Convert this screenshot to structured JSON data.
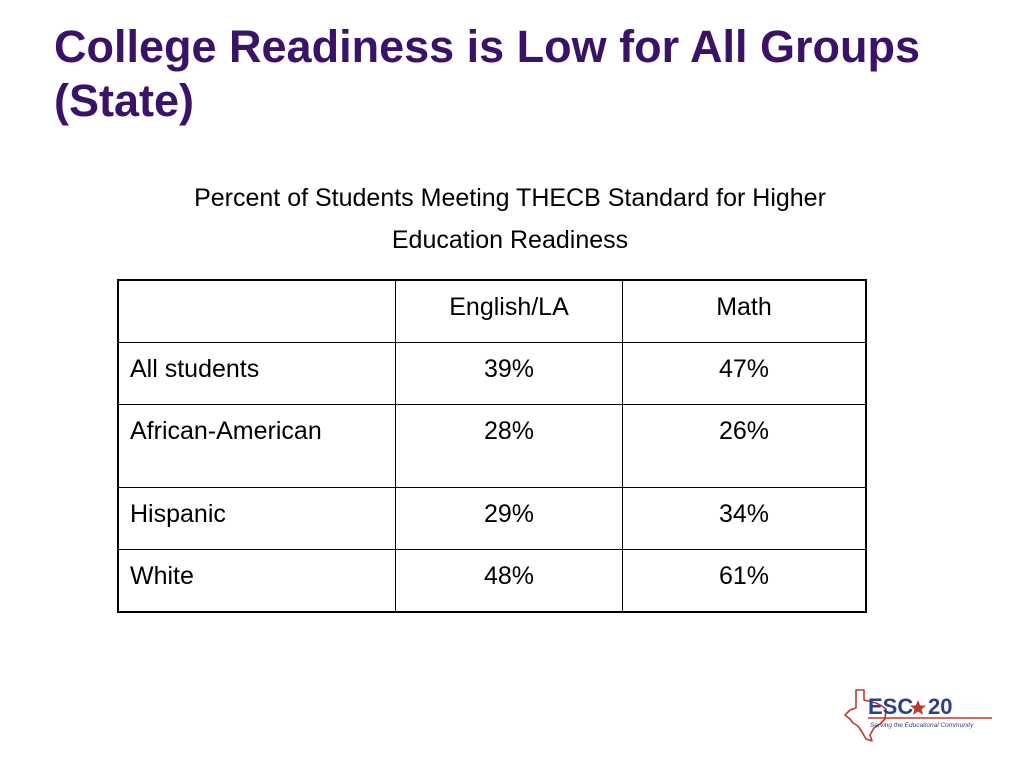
{
  "slide": {
    "title": "College Readiness is Low for All Groups (State)",
    "subtitle_line1": "Percent of Students Meeting THECB Standard for Higher",
    "subtitle_line2": "Education Readiness"
  },
  "table": {
    "headers": [
      "",
      "English/LA",
      "Math"
    ],
    "rows": [
      {
        "group": "All students",
        "english": "39%",
        "math": "47%"
      },
      {
        "group": "African-American",
        "english": "28%",
        "math": "26%"
      },
      {
        "group": "Hispanic",
        "english": "29%",
        "math": "34%"
      },
      {
        "group": "White",
        "english": "48%",
        "math": "61%"
      }
    ]
  },
  "logo": {
    "name": "ESC",
    "number": "20",
    "tagline": "Serving the Educational Community"
  },
  "colors": {
    "title": "#3a1268",
    "logo_blue": "#2a3f8f",
    "logo_red": "#c0392b"
  }
}
